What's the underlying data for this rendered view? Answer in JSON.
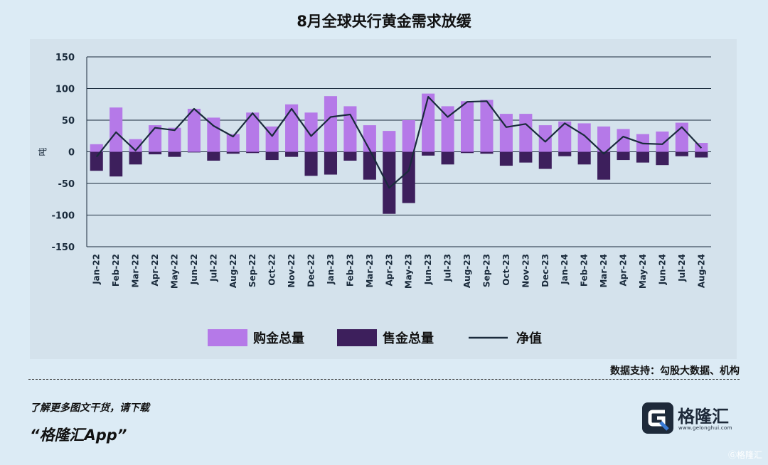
{
  "title": "8月全球央行黄金需求放缓",
  "source_text": "数据支持：勾股大数据、机构",
  "footer": {
    "promo_line": "了解更多图文干货，请下载",
    "app_name": "“格隆汇App”"
  },
  "logo": {
    "name": "格隆汇",
    "url": "www.gelonghui.com"
  },
  "corner_mark": "Ⓖ格隆汇",
  "colors": {
    "buy": "#b579e8",
    "sell": "#3d1f5c",
    "net": "#1a2b3c",
    "grid": "#1a2b3c",
    "panel": "#d4e2ec"
  },
  "chart_data": {
    "type": "bar",
    "ylabel": "吨",
    "ylim": [
      -150,
      150
    ],
    "yticks": [
      150,
      100,
      50,
      0,
      -50,
      -100,
      -150
    ],
    "grid": true,
    "legend_position": "bottom",
    "categories": [
      "Jan-22",
      "Feb-22",
      "Mar-22",
      "Apr-22",
      "May-22",
      "Jun-22",
      "Jul-22",
      "Aug-22",
      "Sep-22",
      "Oct-22",
      "Nov-22",
      "Dec-22",
      "Jan-23",
      "Feb-23",
      "Mar-23",
      "Apr-23",
      "May-23",
      "Jun-23",
      "Jul-23",
      "Aug-23",
      "Sep-23",
      "Oct-23",
      "Nov-23",
      "Dec-23",
      "Jan-24",
      "Feb-24",
      "Mar-24",
      "Apr-24",
      "May-24",
      "Jun-24",
      "Jul-24",
      "Aug-24"
    ],
    "series": [
      {
        "name": "购金总量",
        "kind": "bar",
        "values": [
          12,
          70,
          20,
          42,
          38,
          68,
          54,
          28,
          62,
          40,
          75,
          62,
          88,
          72,
          42,
          33,
          50,
          92,
          72,
          80,
          82,
          60,
          60,
          42,
          48,
          45,
          40,
          36,
          28,
          32,
          46,
          14
        ]
      },
      {
        "name": "售金总量",
        "kind": "bar",
        "values": [
          -30,
          -39,
          -20,
          -4,
          -8,
          -1,
          -14,
          -3,
          -2,
          -13,
          -8,
          -38,
          -36,
          -14,
          -44,
          -98,
          -81,
          -6,
          -20,
          -2,
          -3,
          -22,
          -17,
          -27,
          -7,
          -20,
          -44,
          -13,
          -17,
          -21,
          -7,
          -9
        ]
      },
      {
        "name": "净值",
        "kind": "line",
        "values": [
          -8,
          31,
          2,
          38,
          34,
          68,
          41,
          24,
          61,
          25,
          68,
          25,
          55,
          59,
          3,
          -57,
          -30,
          87,
          55,
          79,
          80,
          39,
          44,
          16,
          45,
          26,
          -3,
          24,
          13,
          12,
          39,
          6
        ]
      }
    ]
  }
}
